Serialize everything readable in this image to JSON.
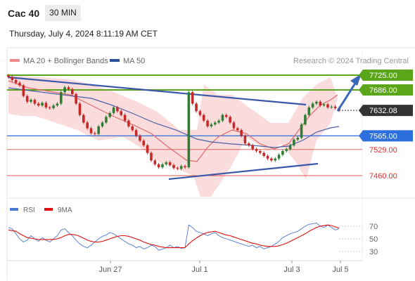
{
  "header": {
    "instrument": "Cac 40",
    "timeframe": "30 MIN",
    "datetime": "Thursday, July 4, 2024 8:11:19 AM CET",
    "credit": "Research © 2024 Trading Central"
  },
  "colors": {
    "candle_up": "#2e7d32",
    "candle_down": "#c62828",
    "ma20": "#e06a6a",
    "bollinger_fill": "#f9c9c9",
    "ma50": "#4a5fa8",
    "trendline": "#3a58a8",
    "resistance": "#5aa51a",
    "current_price": "#333333",
    "pivot": "#2d6fdc",
    "support": "#e05050",
    "rsi": "#4a78d0",
    "rsi_ma": "#e01010"
  },
  "chart_data": [
    {
      "type": "candlestick",
      "title": "Cac 40",
      "legend": [
        {
          "name": "MA 20 + Bollinger Bands",
          "color": "#f08a8a"
        },
        {
          "name": "MA 50",
          "color": "#2a4f9a"
        }
      ],
      "x_ticks": [
        "Jun 27",
        "Jul 1",
        "Jul 3",
        "Jul 5"
      ],
      "ylim": [
        7405,
        7745
      ],
      "levels": [
        {
          "label": "7725.00",
          "value": 7725,
          "kind": "resistance"
        },
        {
          "label": "7686.00",
          "value": 7686,
          "kind": "resistance"
        },
        {
          "label": "7632.08",
          "value": 7632.08,
          "kind": "current"
        },
        {
          "label": "7565.00",
          "value": 7565,
          "kind": "pivot"
        },
        {
          "label": "7529.00",
          "value": 7529,
          "kind": "support"
        },
        {
          "label": "7460.00",
          "value": 7460,
          "kind": "support"
        }
      ],
      "close_series": [
        7720,
        7712,
        7705,
        7698,
        7670,
        7655,
        7660,
        7650,
        7645,
        7652,
        7640,
        7638,
        7645,
        7650,
        7680,
        7693,
        7688,
        7675,
        7650,
        7620,
        7600,
        7585,
        7572,
        7570,
        7590,
        7600,
        7615,
        7625,
        7640,
        7630,
        7620,
        7605,
        7590,
        7580,
        7565,
        7552,
        7540,
        7520,
        7500,
        7490,
        7482,
        7490,
        7495,
        7488,
        7480,
        7478,
        7485,
        7482,
        7680,
        7650,
        7630,
        7620,
        7605,
        7590,
        7595,
        7600,
        7605,
        7620,
        7615,
        7600,
        7585,
        7580,
        7565,
        7545,
        7540,
        7530,
        7525,
        7520,
        7512,
        7505,
        7500,
        7505,
        7515,
        7525,
        7530,
        7540,
        7555,
        7560,
        7595,
        7620,
        7640,
        7650,
        7655,
        7645,
        7648,
        7640,
        7642,
        7638,
        7632.08
      ]
    },
    {
      "type": "line",
      "title": "RSI",
      "legend": [
        {
          "name": "RSI",
          "color": "#4a78d0"
        },
        {
          "name": "9MA",
          "color": "#e01010"
        }
      ],
      "x_ticks": [
        "Jun 27",
        "Jul 1",
        "Jul 3",
        "Jul 5"
      ],
      "y_ticks": [
        70,
        50,
        30
      ],
      "ylim": [
        15,
        85
      ],
      "series": [
        {
          "name": "RSI",
          "values": [
            68,
            66,
            58,
            50,
            45,
            48,
            55,
            50,
            46,
            52,
            48,
            45,
            50,
            55,
            64,
            66,
            60,
            55,
            48,
            42,
            38,
            36,
            40,
            45,
            50,
            54,
            56,
            60,
            58,
            54,
            50,
            46,
            42,
            40,
            36,
            38,
            34,
            36,
            40,
            38,
            32,
            34,
            36,
            40,
            36,
            38,
            35,
            36,
            72,
            68,
            62,
            60,
            58,
            55,
            58,
            60,
            55,
            52,
            50,
            48,
            46,
            44,
            42,
            40,
            38,
            40,
            36,
            38,
            34,
            36,
            38,
            42,
            46,
            52,
            55,
            58,
            60,
            62,
            66,
            70,
            73,
            74,
            75,
            70,
            68,
            72,
            68,
            64,
            66
          ]
        },
        {
          "name": "9MA",
          "values": [
            64,
            63,
            62,
            58,
            55,
            52,
            51,
            50,
            49,
            49,
            49,
            49,
            49,
            50,
            52,
            55,
            57,
            57,
            56,
            54,
            51,
            48,
            46,
            45,
            45,
            46,
            48,
            50,
            52,
            54,
            55,
            55,
            54,
            52,
            50,
            48,
            45,
            43,
            41,
            40,
            38,
            37,
            36,
            36,
            36,
            36,
            36,
            36,
            42,
            47,
            51,
            55,
            58,
            60,
            61,
            62,
            60,
            58,
            56,
            55,
            53,
            51,
            49,
            47,
            45,
            43,
            42,
            40,
            39,
            38,
            38,
            38,
            39,
            41,
            43,
            46,
            49,
            52,
            55,
            58,
            62,
            65,
            68,
            70,
            71,
            72,
            71,
            69,
            67
          ]
        }
      ]
    }
  ]
}
